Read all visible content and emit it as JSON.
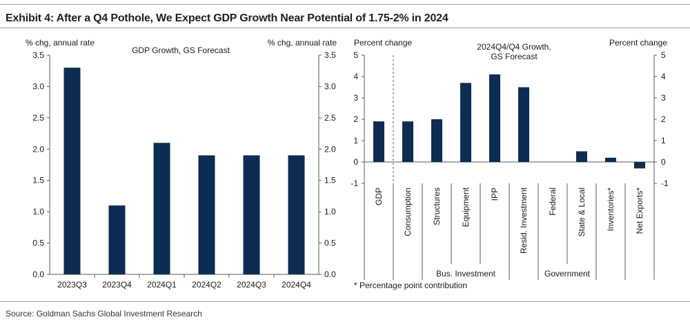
{
  "title": "Exhibit 4: After a Q4 Pothole, We Expect GDP Growth Near Potential of 1.75-2% in 2024",
  "source": "Source: Goldman Sachs Global Investment Research",
  "colors": {
    "bar": "#0d2c54",
    "axis": "#595959",
    "rule": "#9aa0a6"
  },
  "chart_data": [
    {
      "type": "bar",
      "title": "GDP Growth, GS Forecast",
      "ylabel_left": "% chg, annual rate",
      "ylabel_right": "% chg, annual rate",
      "ylim": [
        0,
        3.5
      ],
      "yticks": [
        "0.0",
        "0.5",
        "1.0",
        "1.5",
        "2.0",
        "2.5",
        "3.0",
        "3.5"
      ],
      "categories": [
        "2023Q3",
        "2023Q4",
        "2024Q1",
        "2024Q2",
        "2024Q3",
        "2024Q4"
      ],
      "values": [
        3.3,
        1.1,
        2.1,
        1.9,
        1.9,
        1.9
      ]
    },
    {
      "type": "bar",
      "title": [
        "2024Q4/Q4 Growth,",
        "GS Forecast"
      ],
      "ylabel_left": "Percent change",
      "ylabel_right": "Percent change",
      "ylim": [
        -1,
        5
      ],
      "yticks": [
        "-1",
        "0",
        "1",
        "2",
        "3",
        "4",
        "5"
      ],
      "categories": [
        "GDP",
        "Consumption",
        "Structures",
        "Equipment",
        "IPP",
        "Resid. Investment",
        "Federal",
        "State & Local",
        "Inventories*",
        "Net Exports*"
      ],
      "values": [
        1.9,
        1.9,
        2.0,
        3.7,
        4.1,
        3.5,
        0.0,
        0.5,
        0.2,
        -0.3
      ],
      "groups": [
        {
          "label": "Bus. Investment",
          "members": [
            "Structures",
            "Equipment",
            "IPP"
          ]
        },
        {
          "label": "Government",
          "members": [
            "Federal",
            "State & Local"
          ]
        }
      ],
      "footnote": "* Percentage point contribution"
    }
  ]
}
